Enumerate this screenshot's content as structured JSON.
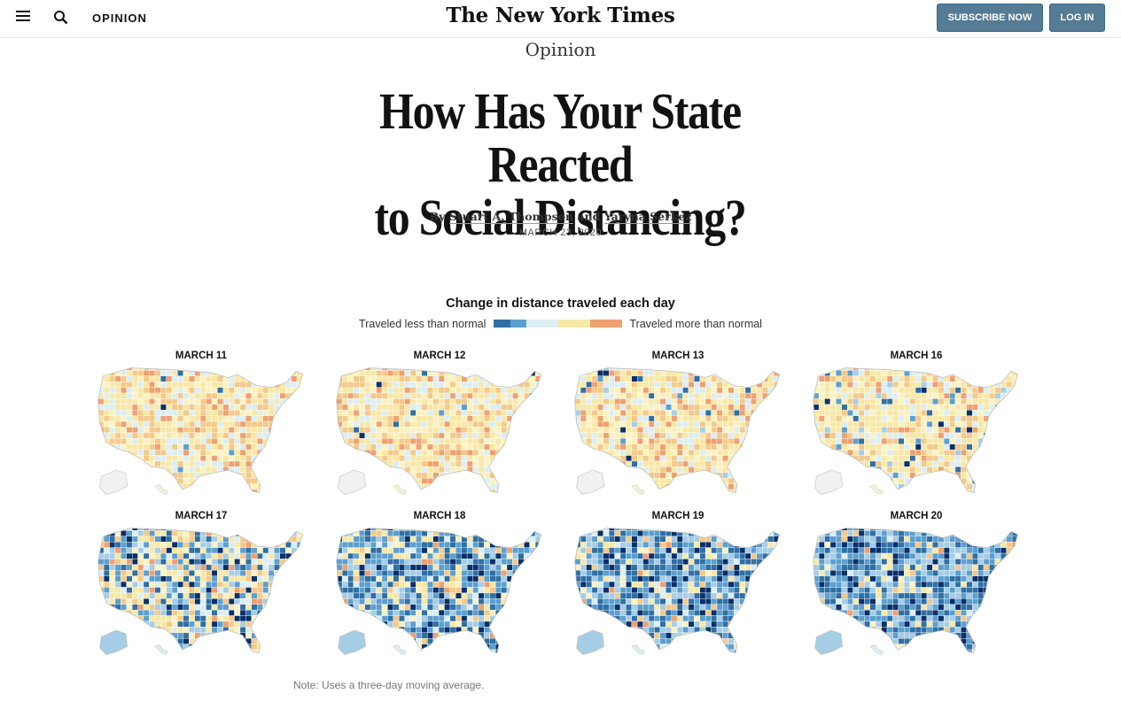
{
  "header": {
    "section_label": "OPINION",
    "masthead": "The New York Times",
    "subscribe_label": "SUBSCRIBE NOW",
    "login_label": "LOG IN",
    "icons": {
      "menu": "hamburger-menu-icon",
      "search": "search-icon"
    },
    "button_color": "#567b95"
  },
  "article": {
    "kicker": "Opinion",
    "headline_line1": "How Has Your State Reacted",
    "headline_line2": "to Social Distancing?",
    "byline_prefix": "By",
    "author1": "Stuart A. Thompson",
    "byline_and": "and",
    "author2": "Yaryna Serkez",
    "date": "MARCH 23, 2020"
  },
  "graphic": {
    "title": "Change in distance traveled each day",
    "legend_less": "Traveled less than normal",
    "legend_more": "Traveled more than normal",
    "legend_colors": [
      "#2f6fa5",
      "#5c9fcf",
      "#dceef4",
      "#f8e8a8",
      "#f0a070"
    ],
    "maps": [
      {
        "label": "MARCH 11",
        "blue_share": 0.02
      },
      {
        "label": "MARCH 12",
        "blue_share": 0.03
      },
      {
        "label": "MARCH 13",
        "blue_share": 0.04
      },
      {
        "label": "MARCH 16",
        "blue_share": 0.12
      },
      {
        "label": "MARCH 17",
        "blue_share": 0.45
      },
      {
        "label": "MARCH 18",
        "blue_share": 0.65
      },
      {
        "label": "MARCH 19",
        "blue_share": 0.78
      },
      {
        "label": "MARCH 20",
        "blue_share": 0.82
      }
    ],
    "note": "Note: Uses a three-day moving average."
  }
}
